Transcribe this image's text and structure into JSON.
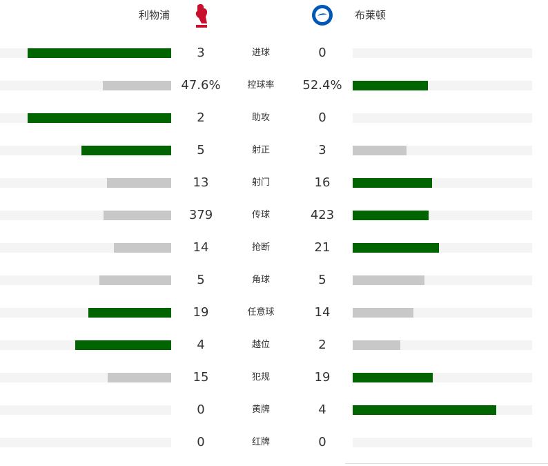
{
  "header": {
    "home": "利物浦",
    "away": "布莱顿"
  },
  "colors": {
    "leader": "#006400",
    "trailer": "#c8c8c8",
    "track": "#f4f4f4"
  },
  "stats": [
    {
      "label": "进球",
      "home": 3,
      "away": 0
    },
    {
      "label": "控球率",
      "home": 47.6,
      "away": 52.4,
      "home_label": "47.6%",
      "away_label": "52.4%"
    },
    {
      "label": "助攻",
      "home": 2,
      "away": 0
    },
    {
      "label": "射正",
      "home": 5,
      "away": 3
    },
    {
      "label": "射门",
      "home": 13,
      "away": 16
    },
    {
      "label": "传球",
      "home": 379,
      "away": 423
    },
    {
      "label": "抢断",
      "home": 14,
      "away": 21
    },
    {
      "label": "角球",
      "home": 5,
      "away": 5
    },
    {
      "label": "任意球",
      "home": 19,
      "away": 14
    },
    {
      "label": "越位",
      "home": 4,
      "away": 2
    },
    {
      "label": "犯规",
      "home": 15,
      "away": 19
    },
    {
      "label": "黄牌",
      "home": 0,
      "away": 4
    },
    {
      "label": "红牌",
      "home": 0,
      "away": 0
    }
  ]
}
